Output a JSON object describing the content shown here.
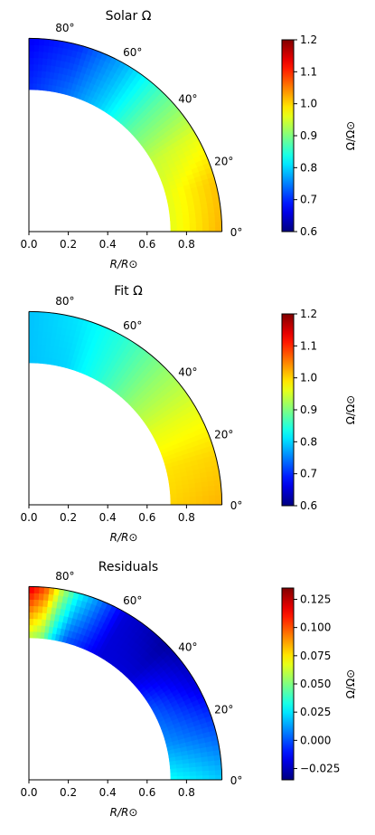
{
  "chart_data": [
    {
      "type": "heatmap",
      "title": "Solar Ω",
      "xlabel": "R/R⊙",
      "xlim": [
        0.0,
        1.0
      ],
      "x_ticks": [
        "0.0",
        "0.2",
        "0.4",
        "0.6",
        "0.8"
      ],
      "angle_labels": [
        "80°",
        "60°",
        "40°",
        "20°",
        "0°"
      ],
      "r_inner": 0.72,
      "r_outer": 0.98,
      "colormap": "jet",
      "colorbar": {
        "label": "Ω/Ω⊙",
        "vmin": 0.6,
        "vmax": 1.2,
        "ticks": [
          "1.2",
          "1.1",
          "1.0",
          "0.9",
          "0.8",
          "0.7",
          "0.6"
        ]
      },
      "field": {
        "latitudes_deg": [
          0,
          15,
          30,
          45,
          60,
          75,
          90
        ],
        "omega_inner": [
          0.96,
          0.96,
          0.94,
          0.88,
          0.8,
          0.74,
          0.7
        ],
        "omega_outer": [
          1.02,
          1.01,
          0.96,
          0.88,
          0.78,
          0.7,
          0.67
        ]
      }
    },
    {
      "type": "heatmap",
      "title": "Fit Ω",
      "xlabel": "R/R⊙",
      "xlim": [
        0.0,
        1.0
      ],
      "x_ticks": [
        "0.0",
        "0.2",
        "0.4",
        "0.6",
        "0.8"
      ],
      "angle_labels": [
        "80°",
        "60°",
        "40°",
        "20°",
        "0°"
      ],
      "r_inner": 0.72,
      "r_outer": 0.98,
      "colormap": "jet",
      "colorbar": {
        "label": "Ω/Ω⊙",
        "vmin": 0.6,
        "vmax": 1.2,
        "ticks": [
          "1.2",
          "1.1",
          "1.0",
          "0.9",
          "0.8",
          "0.7",
          "0.6"
        ]
      },
      "field": {
        "latitudes_deg": [
          0,
          15,
          30,
          45,
          60,
          75,
          90
        ],
        "omega_inner": [
          1.0,
          0.99,
          0.96,
          0.91,
          0.85,
          0.8,
          0.79
        ],
        "omega_outer": [
          1.02,
          1.0,
          0.96,
          0.91,
          0.85,
          0.81,
          0.79
        ]
      }
    },
    {
      "type": "heatmap",
      "title": "Residuals",
      "xlabel": "R/R⊙",
      "xlim": [
        0.0,
        1.0
      ],
      "x_ticks": [
        "0.0",
        "0.2",
        "0.4",
        "0.6",
        "0.8"
      ],
      "angle_labels": [
        "80°",
        "60°",
        "40°",
        "20°",
        "0°"
      ],
      "r_inner": 0.72,
      "r_outer": 0.98,
      "colormap": "jet",
      "colorbar": {
        "label": "Ω/Ω⊙",
        "vmin": -0.035,
        "vmax": 0.135,
        "ticks": [
          "0.125",
          "0.100",
          "0.075",
          "0.050",
          "0.025",
          "0.000",
          "−0.025"
        ]
      },
      "field": {
        "latitudes_deg": [
          0,
          15,
          30,
          45,
          60,
          75,
          80,
          85,
          90
        ],
        "omega_inner": [
          0.03,
          0.01,
          0.0,
          -0.02,
          -0.02,
          0.0,
          0.02,
          0.05,
          0.06
        ],
        "omega_outer": [
          0.02,
          0.0,
          -0.02,
          -0.03,
          -0.02,
          0.03,
          0.06,
          0.1,
          0.12
        ]
      }
    }
  ]
}
